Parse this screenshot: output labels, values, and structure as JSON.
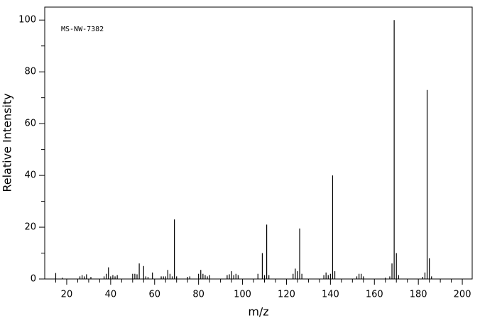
{
  "chart_data": {
    "type": "stem",
    "annotation": "MS-NW-7382",
    "xlabel": "m/z",
    "ylabel": "Relative Intensity",
    "color": "#000000",
    "xlim": [
      10,
      204.5
    ],
    "ylim": [
      0,
      105
    ],
    "xticks": [
      20,
      40,
      60,
      80,
      100,
      120,
      140,
      160,
      180,
      200
    ],
    "yticks": [
      0,
      20,
      40,
      60,
      80,
      100
    ],
    "xminorticks": [
      15,
      25,
      30,
      35,
      45,
      50,
      55,
      65,
      70,
      75,
      85,
      90,
      95,
      105,
      110,
      115,
      125,
      130,
      135,
      145,
      150,
      155,
      165,
      170,
      175,
      185,
      190,
      195
    ],
    "yminorticks": [
      10,
      30,
      50,
      70,
      90
    ],
    "x": [
      15,
      18,
      26,
      27,
      28,
      29,
      31,
      37,
      38,
      39,
      40,
      41,
      42,
      43,
      50,
      51,
      52,
      53,
      55,
      56,
      57,
      59,
      63,
      64,
      65,
      66,
      67,
      68,
      69,
      70,
      75,
      76,
      80,
      81,
      82,
      83,
      84,
      85,
      93,
      94,
      95,
      96,
      97,
      98,
      107,
      109,
      110,
      111,
      112,
      123,
      124,
      125,
      126,
      127,
      137,
      138,
      139,
      140,
      141,
      142,
      152,
      153,
      154,
      155,
      165,
      167,
      168,
      169,
      170,
      171,
      182,
      183,
      184,
      185,
      186
    ],
    "values": [
      2.3,
      0.5,
      1,
      1.5,
      1,
      1.8,
      0.8,
      1,
      2,
      4.5,
      1,
      1.5,
      1,
      1.5,
      2,
      2,
      1.8,
      6,
      5,
      1,
      0.8,
      2.5,
      1,
      1,
      1,
      3.5,
      2,
      1,
      23,
      1,
      0.8,
      1,
      2,
      3.5,
      2,
      1.5,
      1,
      1.5,
      1.5,
      1.8,
      3,
      1.5,
      2,
      1.5,
      2,
      10,
      1.5,
      21,
      1.5,
      2,
      4,
      3,
      19.5,
      2,
      1.5,
      2.5,
      1.5,
      2,
      40,
      3,
      1,
      2,
      2,
      1,
      0.5,
      1,
      6,
      100,
      10,
      1.5,
      0.8,
      2.5,
      73,
      8,
      1
    ]
  }
}
